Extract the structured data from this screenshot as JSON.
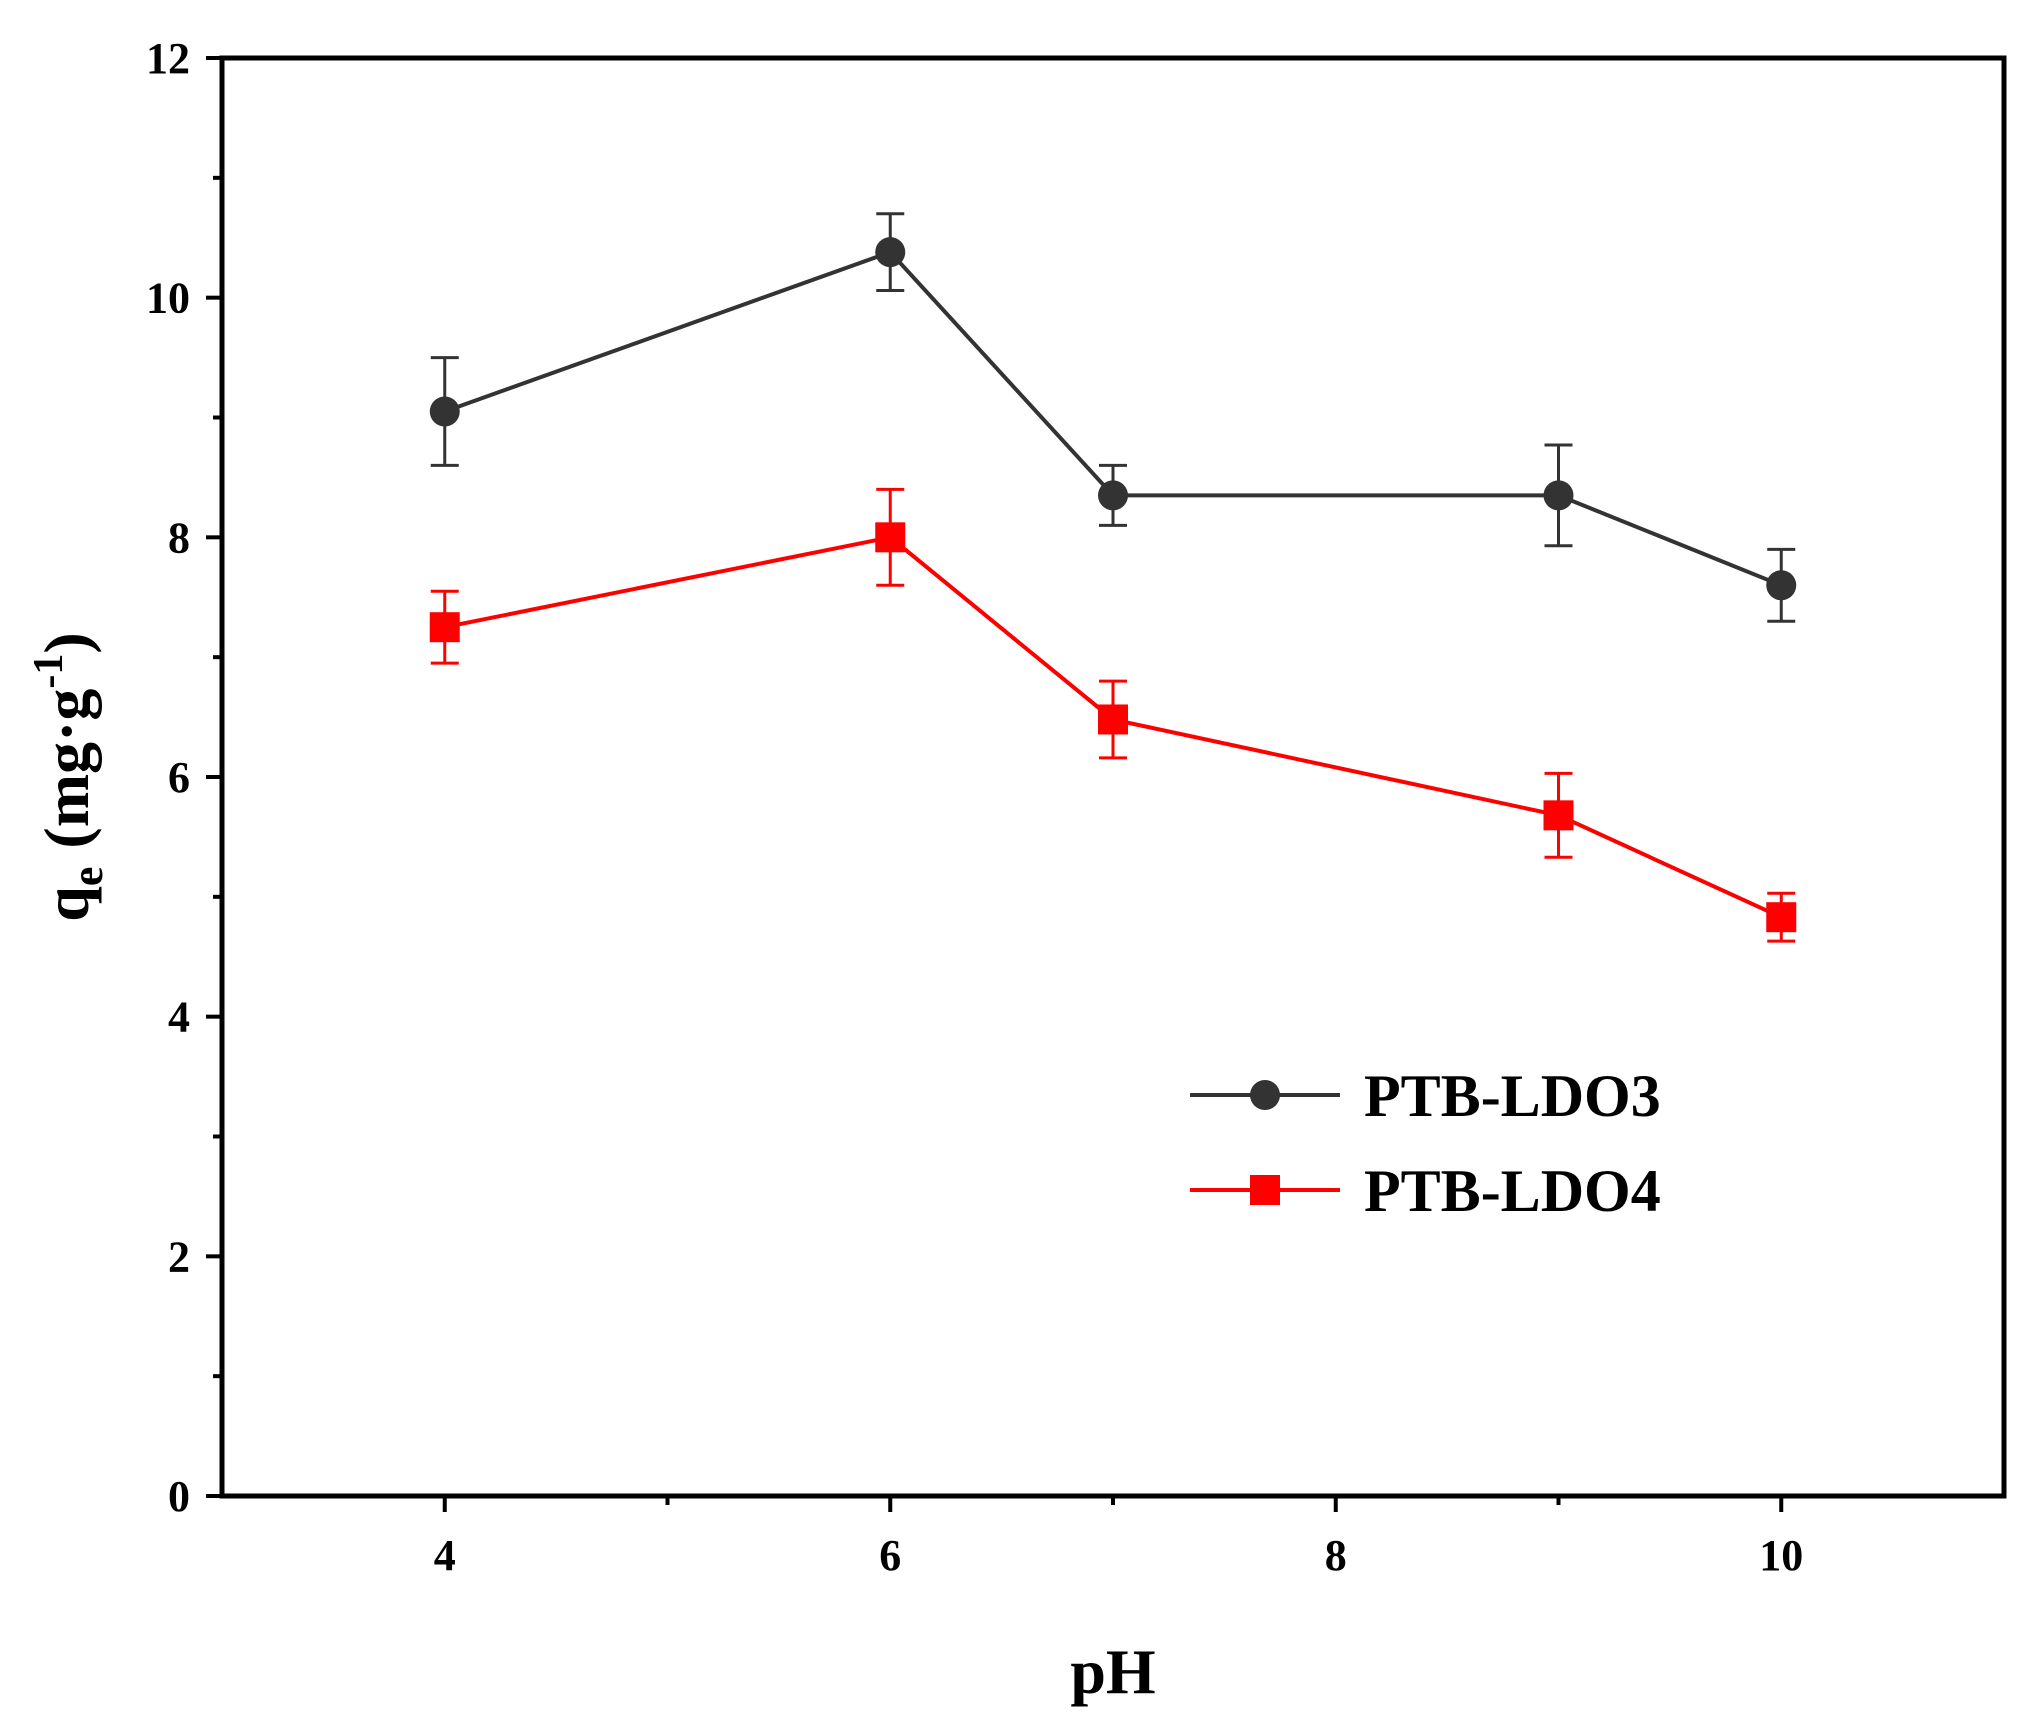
{
  "chart_data": {
    "type": "line",
    "xlabel": "pH",
    "ylabel": {
      "base": "q",
      "subscript": "e",
      "units": "(mg·g",
      "superscript": "-1",
      "close": ")"
    },
    "xlim": [
      3,
      11
    ],
    "ylim": [
      0,
      12
    ],
    "xticks": [
      4,
      6,
      8,
      10
    ],
    "xminor": [
      5,
      7,
      9
    ],
    "yticks": [
      0,
      2,
      4,
      6,
      8,
      10,
      12
    ],
    "yminor": [
      1,
      3,
      5,
      7,
      9,
      11
    ],
    "grid": false,
    "legend_position": "center-right",
    "series": [
      {
        "name": "PTB-LDO3",
        "color": "#333333",
        "marker": "circle",
        "x": [
          4,
          6,
          7,
          9,
          10
        ],
        "y": [
          9.05,
          10.38,
          8.35,
          8.35,
          7.6
        ],
        "yerr": [
          0.45,
          0.32,
          0.25,
          0.42,
          0.3
        ]
      },
      {
        "name": "PTB-LDO4",
        "color": "#ff0000",
        "marker": "square",
        "x": [
          4,
          6,
          7,
          9,
          10
        ],
        "y": [
          7.25,
          8.0,
          6.48,
          5.68,
          4.83
        ],
        "yerr": [
          0.3,
          0.4,
          0.32,
          0.35,
          0.2
        ]
      }
    ]
  }
}
